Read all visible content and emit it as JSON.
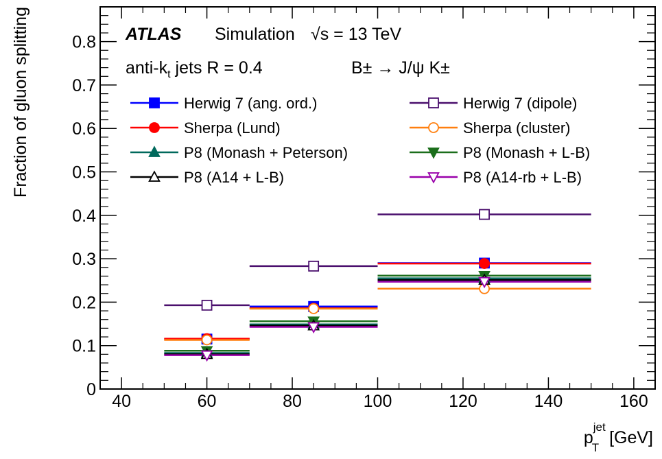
{
  "chart_data": {
    "type": "scatter",
    "header": {
      "atlas": "ATLAS",
      "simulation": "Simulation",
      "energy": "√s = 13 TeV",
      "jets_prefix": "anti-k",
      "jets_sub": "t",
      "jets_suffix": " jets R = 0.4",
      "decay": "B± → J/ψ K±"
    },
    "xlabel": {
      "main": "p",
      "sub": "T",
      "sup": "jet",
      "unit": " [GeV]"
    },
    "ylabel": "Fraction of gluon splitting",
    "xlim": [
      35,
      165
    ],
    "ylim": [
      0,
      0.88
    ],
    "xticks": [
      "40",
      "60",
      "80",
      "100",
      "120",
      "140",
      "160"
    ],
    "yticks": [
      "0",
      "0.1",
      "0.2",
      "0.3",
      "0.4",
      "0.5",
      "0.6",
      "0.7",
      "0.8"
    ],
    "bins": [
      {
        "x": 60,
        "low": 50,
        "high": 70
      },
      {
        "x": 85,
        "low": 70,
        "high": 100
      },
      {
        "x": 125,
        "low": 100,
        "high": 150
      }
    ],
    "series": [
      {
        "name": "Herwig 7 (ang. ord.)",
        "color": "#0000ff",
        "marker": "square-filled",
        "values": [
          0.115,
          0.19,
          0.29
        ]
      },
      {
        "name": "Herwig 7 (dipole)",
        "color": "#4a0f6d",
        "marker": "square-open",
        "values": [
          0.193,
          0.283,
          0.402
        ]
      },
      {
        "name": "Sherpa (Lund)",
        "color": "#ff0000",
        "marker": "circle-filled",
        "values": [
          0.116,
          0.186,
          0.289
        ]
      },
      {
        "name": "Sherpa (cluster)",
        "color": "#ff7f0e",
        "marker": "circle-open",
        "values": [
          0.113,
          0.185,
          0.231
        ]
      },
      {
        "name": "P8 (Monash + Peterson)",
        "color": "#00695c",
        "marker": "triangle-up-filled",
        "values": [
          0.083,
          0.149,
          0.255
        ]
      },
      {
        "name": "P8 (Monash + L-B)",
        "color": "#1b6e1b",
        "marker": "triangle-down-filled",
        "values": [
          0.088,
          0.156,
          0.261
        ]
      },
      {
        "name": "P8 (A14 + L-B)",
        "color": "#000000",
        "marker": "triangle-up-open",
        "values": [
          0.08,
          0.146,
          0.251
        ]
      },
      {
        "name": "P8 (A14-rb + L-B)",
        "color": "#9900aa",
        "marker": "triangle-down-open",
        "values": [
          0.078,
          0.143,
          0.247
        ]
      }
    ],
    "grid": false,
    "legend_position": "top-left, two columns"
  }
}
